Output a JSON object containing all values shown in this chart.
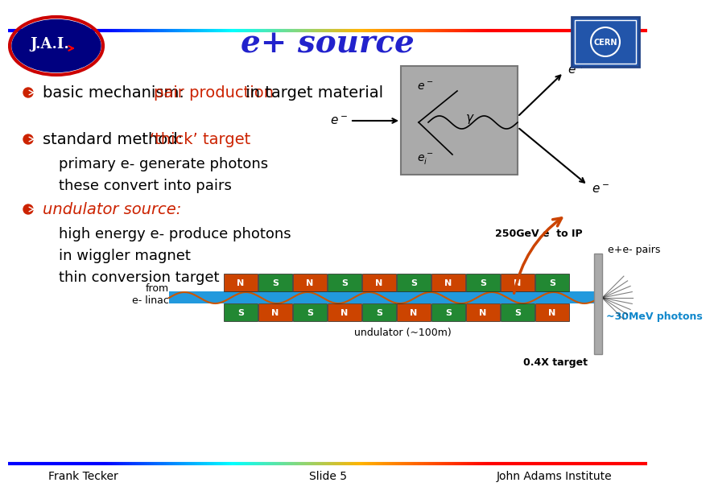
{
  "title": "e+ source",
  "title_color": "#2222cc",
  "title_fontsize": 28,
  "bg_color": "#ffffff",
  "bullet1_black": "basic mechanism: ",
  "bullet1_red": "pair production",
  "bullet1_rest": " in target material",
  "bullet2_black": "standard method: ",
  "bullet2_red": "‘thick’ target",
  "bullet2_sub1": "primary e- generate photons",
  "bullet2_sub2": "these convert into pairs",
  "bullet3_red": "undulator source:",
  "bullet3_sub1": "high energy e- produce photons",
  "bullet3_sub2": "in wiggler magnet",
  "bullet3_sub3": "thin conversion target",
  "footer_left": "Frank Tecker",
  "footer_center": "Slide 5",
  "footer_right": "John Adams Institute",
  "footer_color": "#000000",
  "footer_fontsize": 10,
  "label_250GeV": "250GeV e  to IP",
  "label_pairs": "e+e- pairs",
  "label_photons": "~30MeV photons",
  "label_undulator": "undulator (~100m)",
  "label_04X": "0.4X target",
  "label_from_elinac": "from\ne- linac",
  "undulator_magnets_top": [
    "N",
    "S",
    "N",
    "S",
    "N",
    "S",
    "N",
    "S",
    "N",
    "S"
  ],
  "undulator_magnets_bot": [
    "S",
    "N",
    "S",
    "N",
    "S",
    "N",
    "S",
    "N",
    "S",
    "N"
  ],
  "magnet_N_color": "#cc4400",
  "magnet_S_color": "#228833",
  "beam_line_color": "#1188cc",
  "arrow_color": "#cc4400",
  "text_main_fontsize": 14,
  "text_sub_fontsize": 13
}
